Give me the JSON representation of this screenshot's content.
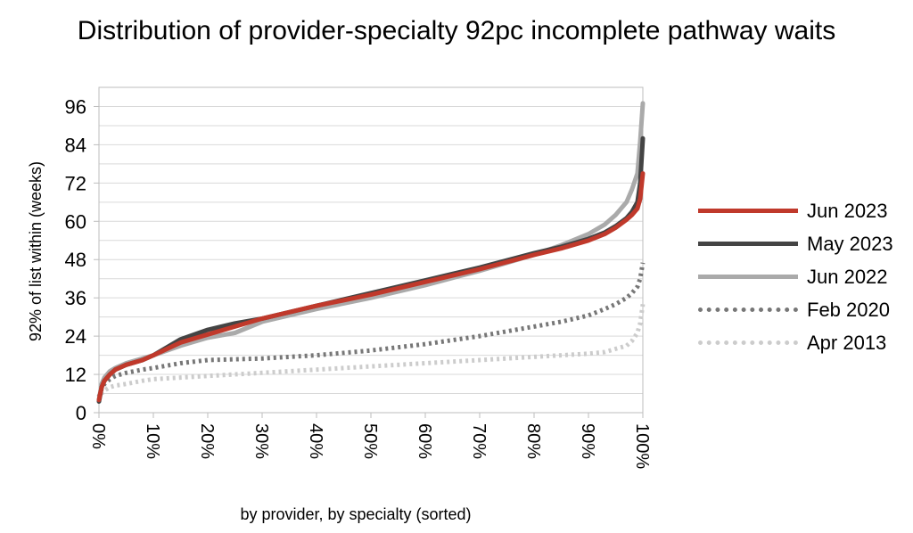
{
  "chart_data": {
    "type": "line",
    "title": "Distribution of provider-specialty 92pc incomplete pathway waits",
    "xlabel": "by provider, by specialty (sorted)",
    "ylabel": "92% of list within (weeks)",
    "xlim": [
      0,
      100
    ],
    "ylim": [
      0,
      102
    ],
    "grid": true,
    "legend_position": "right",
    "y_ticks": [
      0,
      12,
      24,
      36,
      48,
      60,
      72,
      84,
      96
    ],
    "y_tick_labels": [
      "0",
      "12",
      "24",
      "36",
      "48",
      "60",
      "72",
      "84",
      "96"
    ],
    "x_ticks": [
      0,
      10,
      20,
      30,
      40,
      50,
      60,
      70,
      80,
      90,
      100
    ],
    "x_tick_labels": [
      "0%",
      "10%",
      "20%",
      "30%",
      "40%",
      "50%",
      "60%",
      "70%",
      "80%",
      "90%",
      "100%"
    ],
    "series": [
      {
        "name": "Jun 2023",
        "color": "#c0392b",
        "style": "solid",
        "x": [
          0,
          0.5,
          1,
          2,
          3,
          5,
          8,
          10,
          15,
          20,
          25,
          30,
          40,
          50,
          60,
          70,
          80,
          85,
          90,
          93,
          95,
          97,
          98,
          99,
          99.5,
          100
        ],
        "y": [
          4,
          8,
          10,
          12,
          13.5,
          15,
          16.5,
          18,
          22,
          24.5,
          27,
          29.5,
          33.5,
          37,
          41,
          45,
          49.5,
          51.5,
          54,
          56,
          58,
          60.5,
          62,
          64,
          67,
          75
        ]
      },
      {
        "name": "May 2023",
        "color": "#444444",
        "style": "solid",
        "x": [
          0,
          0.5,
          1,
          2,
          3,
          5,
          8,
          10,
          15,
          20,
          25,
          30,
          40,
          50,
          60,
          70,
          80,
          85,
          90,
          93,
          95,
          97,
          98,
          99,
          99.5,
          100
        ],
        "y": [
          3.5,
          8,
          10,
          12,
          13.5,
          15,
          16.5,
          18,
          23,
          26,
          28,
          29.5,
          33.5,
          37.5,
          41.5,
          45.5,
          50,
          52,
          54.5,
          56.5,
          58.5,
          61,
          63,
          66,
          72,
          86
        ]
      },
      {
        "name": "Jun 2022",
        "color": "#aaaaaa",
        "style": "solid",
        "x": [
          0,
          0.5,
          1,
          2,
          3,
          5,
          8,
          10,
          15,
          20,
          25,
          30,
          40,
          50,
          60,
          70,
          80,
          85,
          90,
          93,
          95,
          97,
          98,
          99,
          99.5,
          100
        ],
        "y": [
          4,
          9,
          11,
          13,
          14,
          15.5,
          17,
          18,
          21,
          23.5,
          25,
          28.5,
          32.5,
          36,
          40,
          44.5,
          49.5,
          52.5,
          56,
          59,
          62,
          66,
          70,
          75,
          85,
          97
        ]
      },
      {
        "name": "Feb 2020",
        "color": "#777777",
        "style": "dotted",
        "x": [
          0,
          0.5,
          1,
          2,
          3,
          5,
          8,
          10,
          15,
          20,
          30,
          40,
          50,
          60,
          70,
          80,
          85,
          90,
          93,
          95,
          97,
          98,
          99,
          99.5,
          100
        ],
        "y": [
          5,
          7.5,
          9,
          10.5,
          11.5,
          12.5,
          13.5,
          14,
          15.5,
          16.5,
          17,
          18,
          19.5,
          21.5,
          24,
          27,
          28.5,
          30.5,
          32.5,
          34,
          36,
          37.5,
          39.5,
          42,
          47
        ]
      },
      {
        "name": "Apr 2013",
        "color": "#cccccc",
        "style": "dotted",
        "x": [
          0,
          0.5,
          1,
          2,
          3,
          5,
          8,
          10,
          15,
          20,
          30,
          40,
          50,
          60,
          70,
          80,
          85,
          90,
          93,
          95,
          97,
          98,
          99,
          99.5,
          100
        ],
        "y": [
          4,
          6,
          7,
          8,
          8.5,
          9,
          10,
          10.5,
          11,
          11.5,
          12.5,
          13.5,
          14.5,
          15.5,
          16.5,
          17.5,
          18,
          18.5,
          19,
          20,
          21,
          22.5,
          25,
          28,
          34
        ]
      }
    ]
  }
}
